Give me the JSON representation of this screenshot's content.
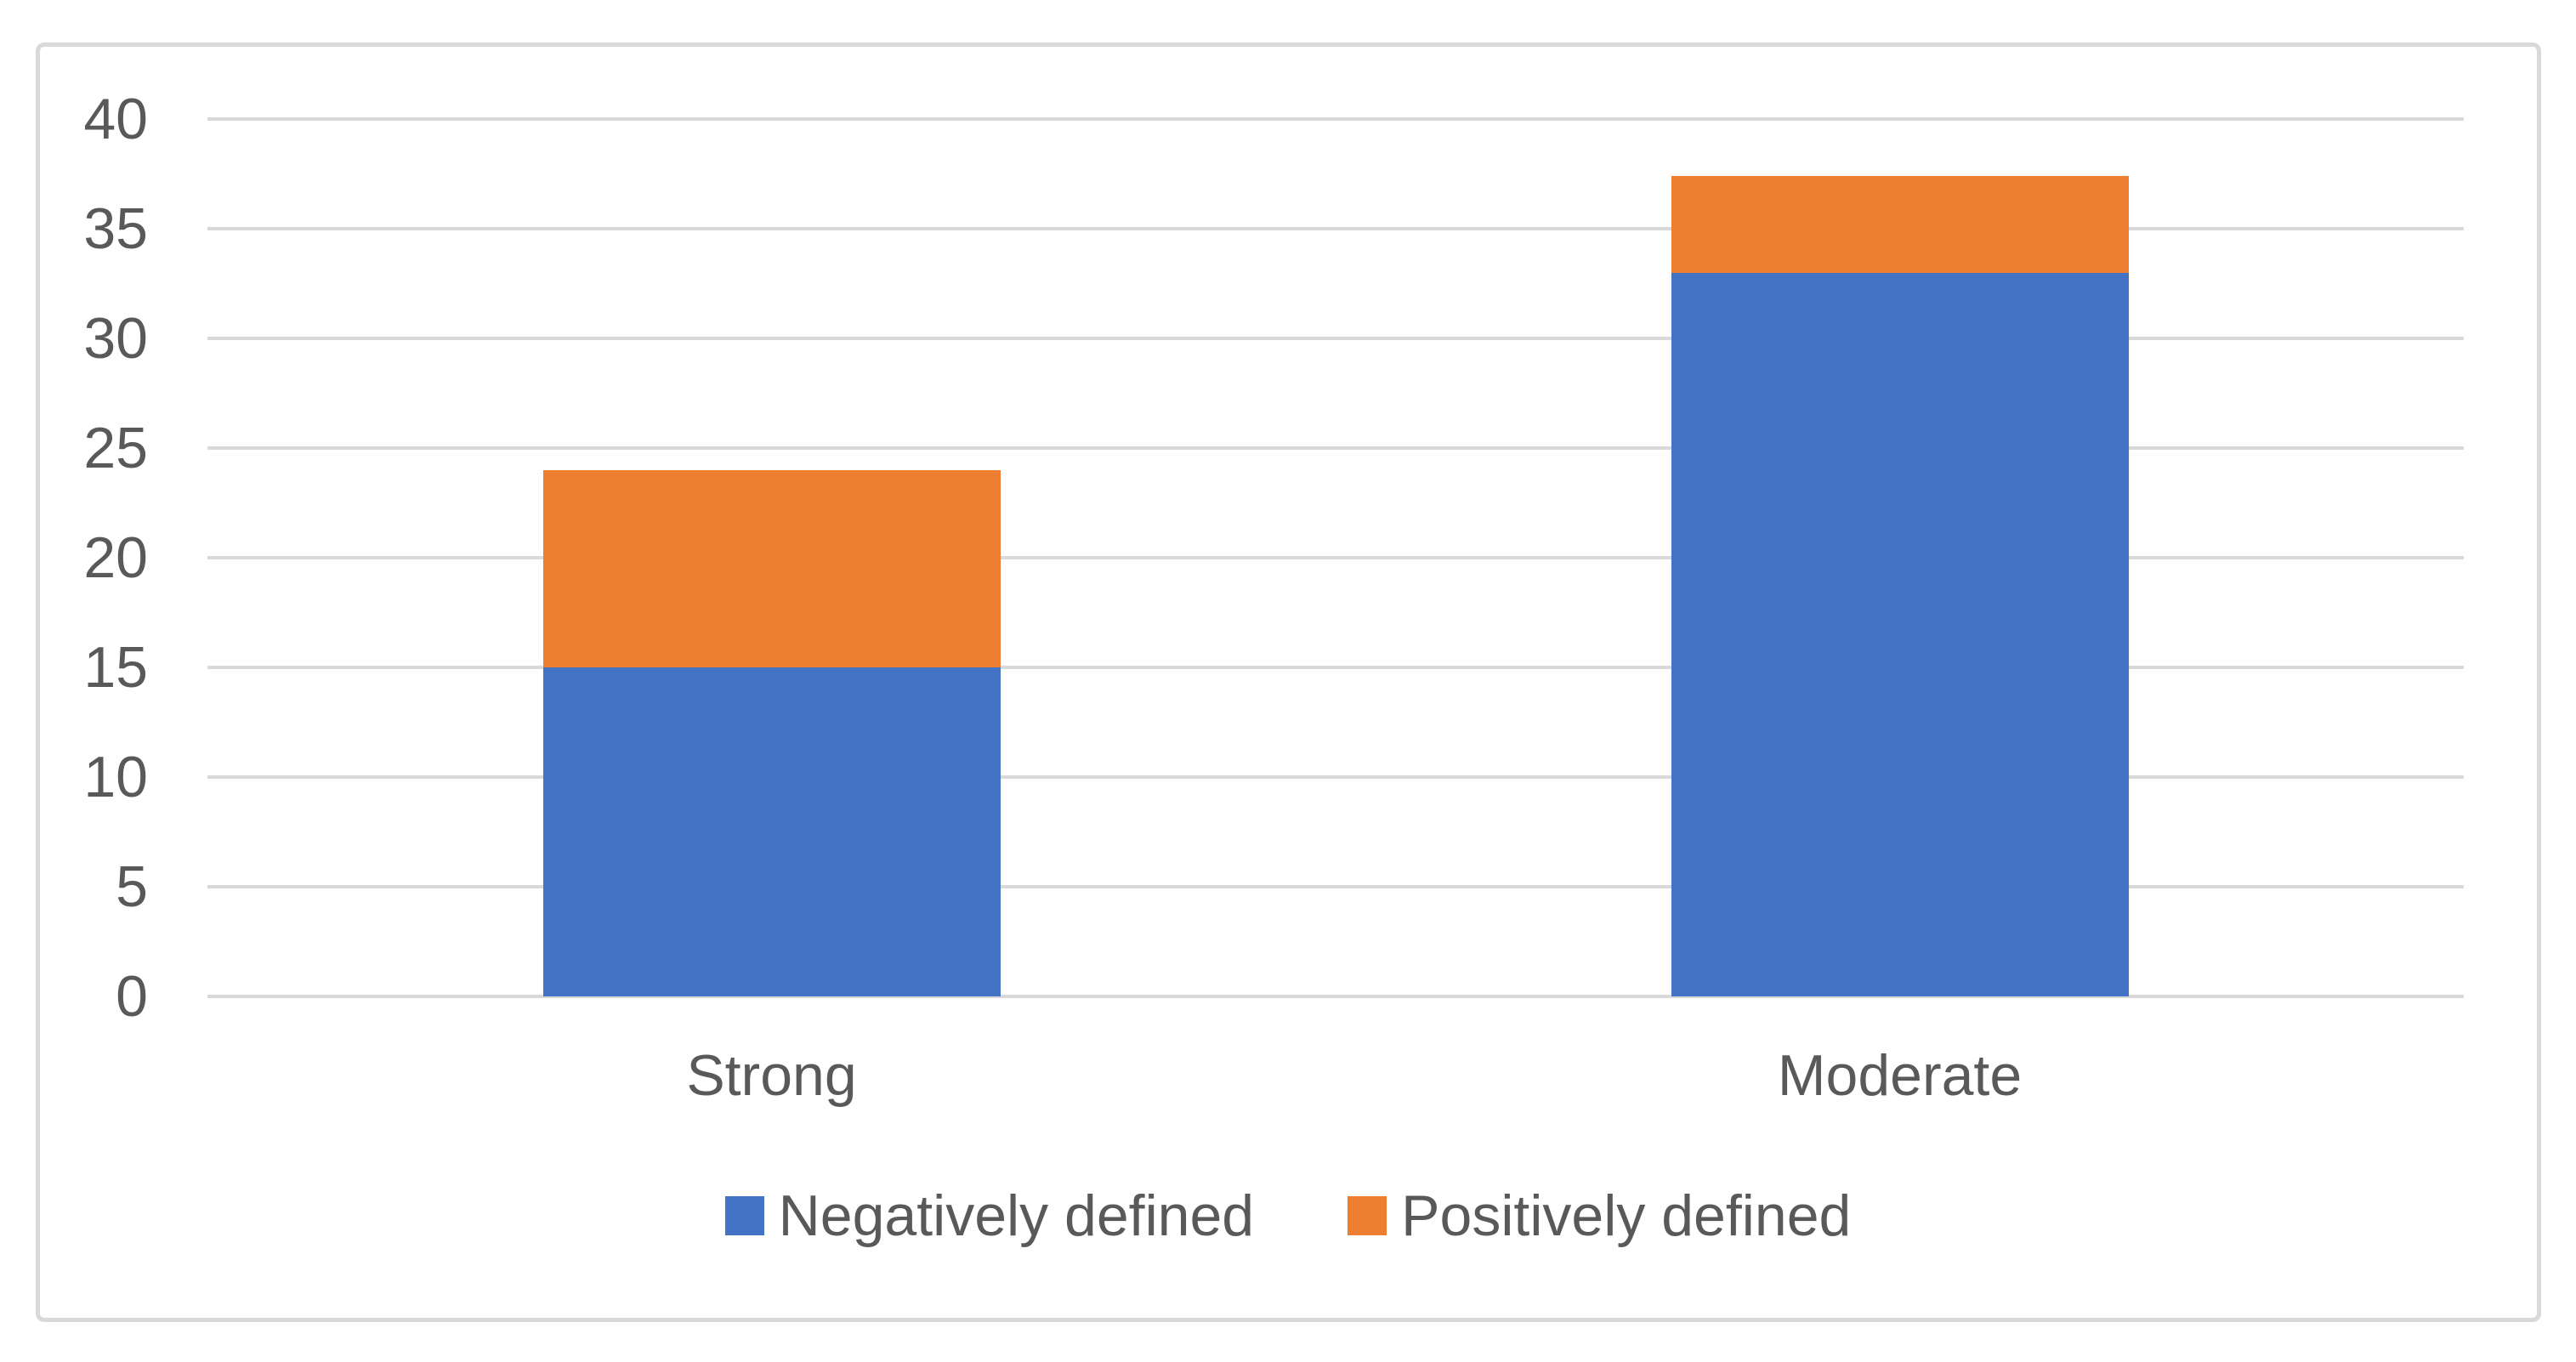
{
  "figure": {
    "background_color": "#FFFFFF",
    "border_color": "#D9D9D9",
    "text_color": "#595959"
  },
  "chart_data": {
    "type": "bar",
    "stacked": true,
    "title": "",
    "xlabel": "",
    "ylabel": "",
    "categories": [
      "Strong",
      "Moderate"
    ],
    "series": [
      {
        "name": "Negatively defined",
        "color": "#4472C4",
        "values": [
          15,
          33
        ]
      },
      {
        "name": "Positively defined",
        "color": "#ED7D31",
        "values": [
          9,
          4.4
        ]
      }
    ],
    "ylim": [
      0,
      40
    ],
    "yticks": [
      0,
      5,
      10,
      15,
      20,
      25,
      30,
      35,
      40
    ],
    "grid": true,
    "gridline_color": "#D9D9D9",
    "axis_tick_label_color": "#595959",
    "legend_position": "bottom",
    "legend_labels": [
      "Negatively defined",
      "Positively defined"
    ]
  }
}
